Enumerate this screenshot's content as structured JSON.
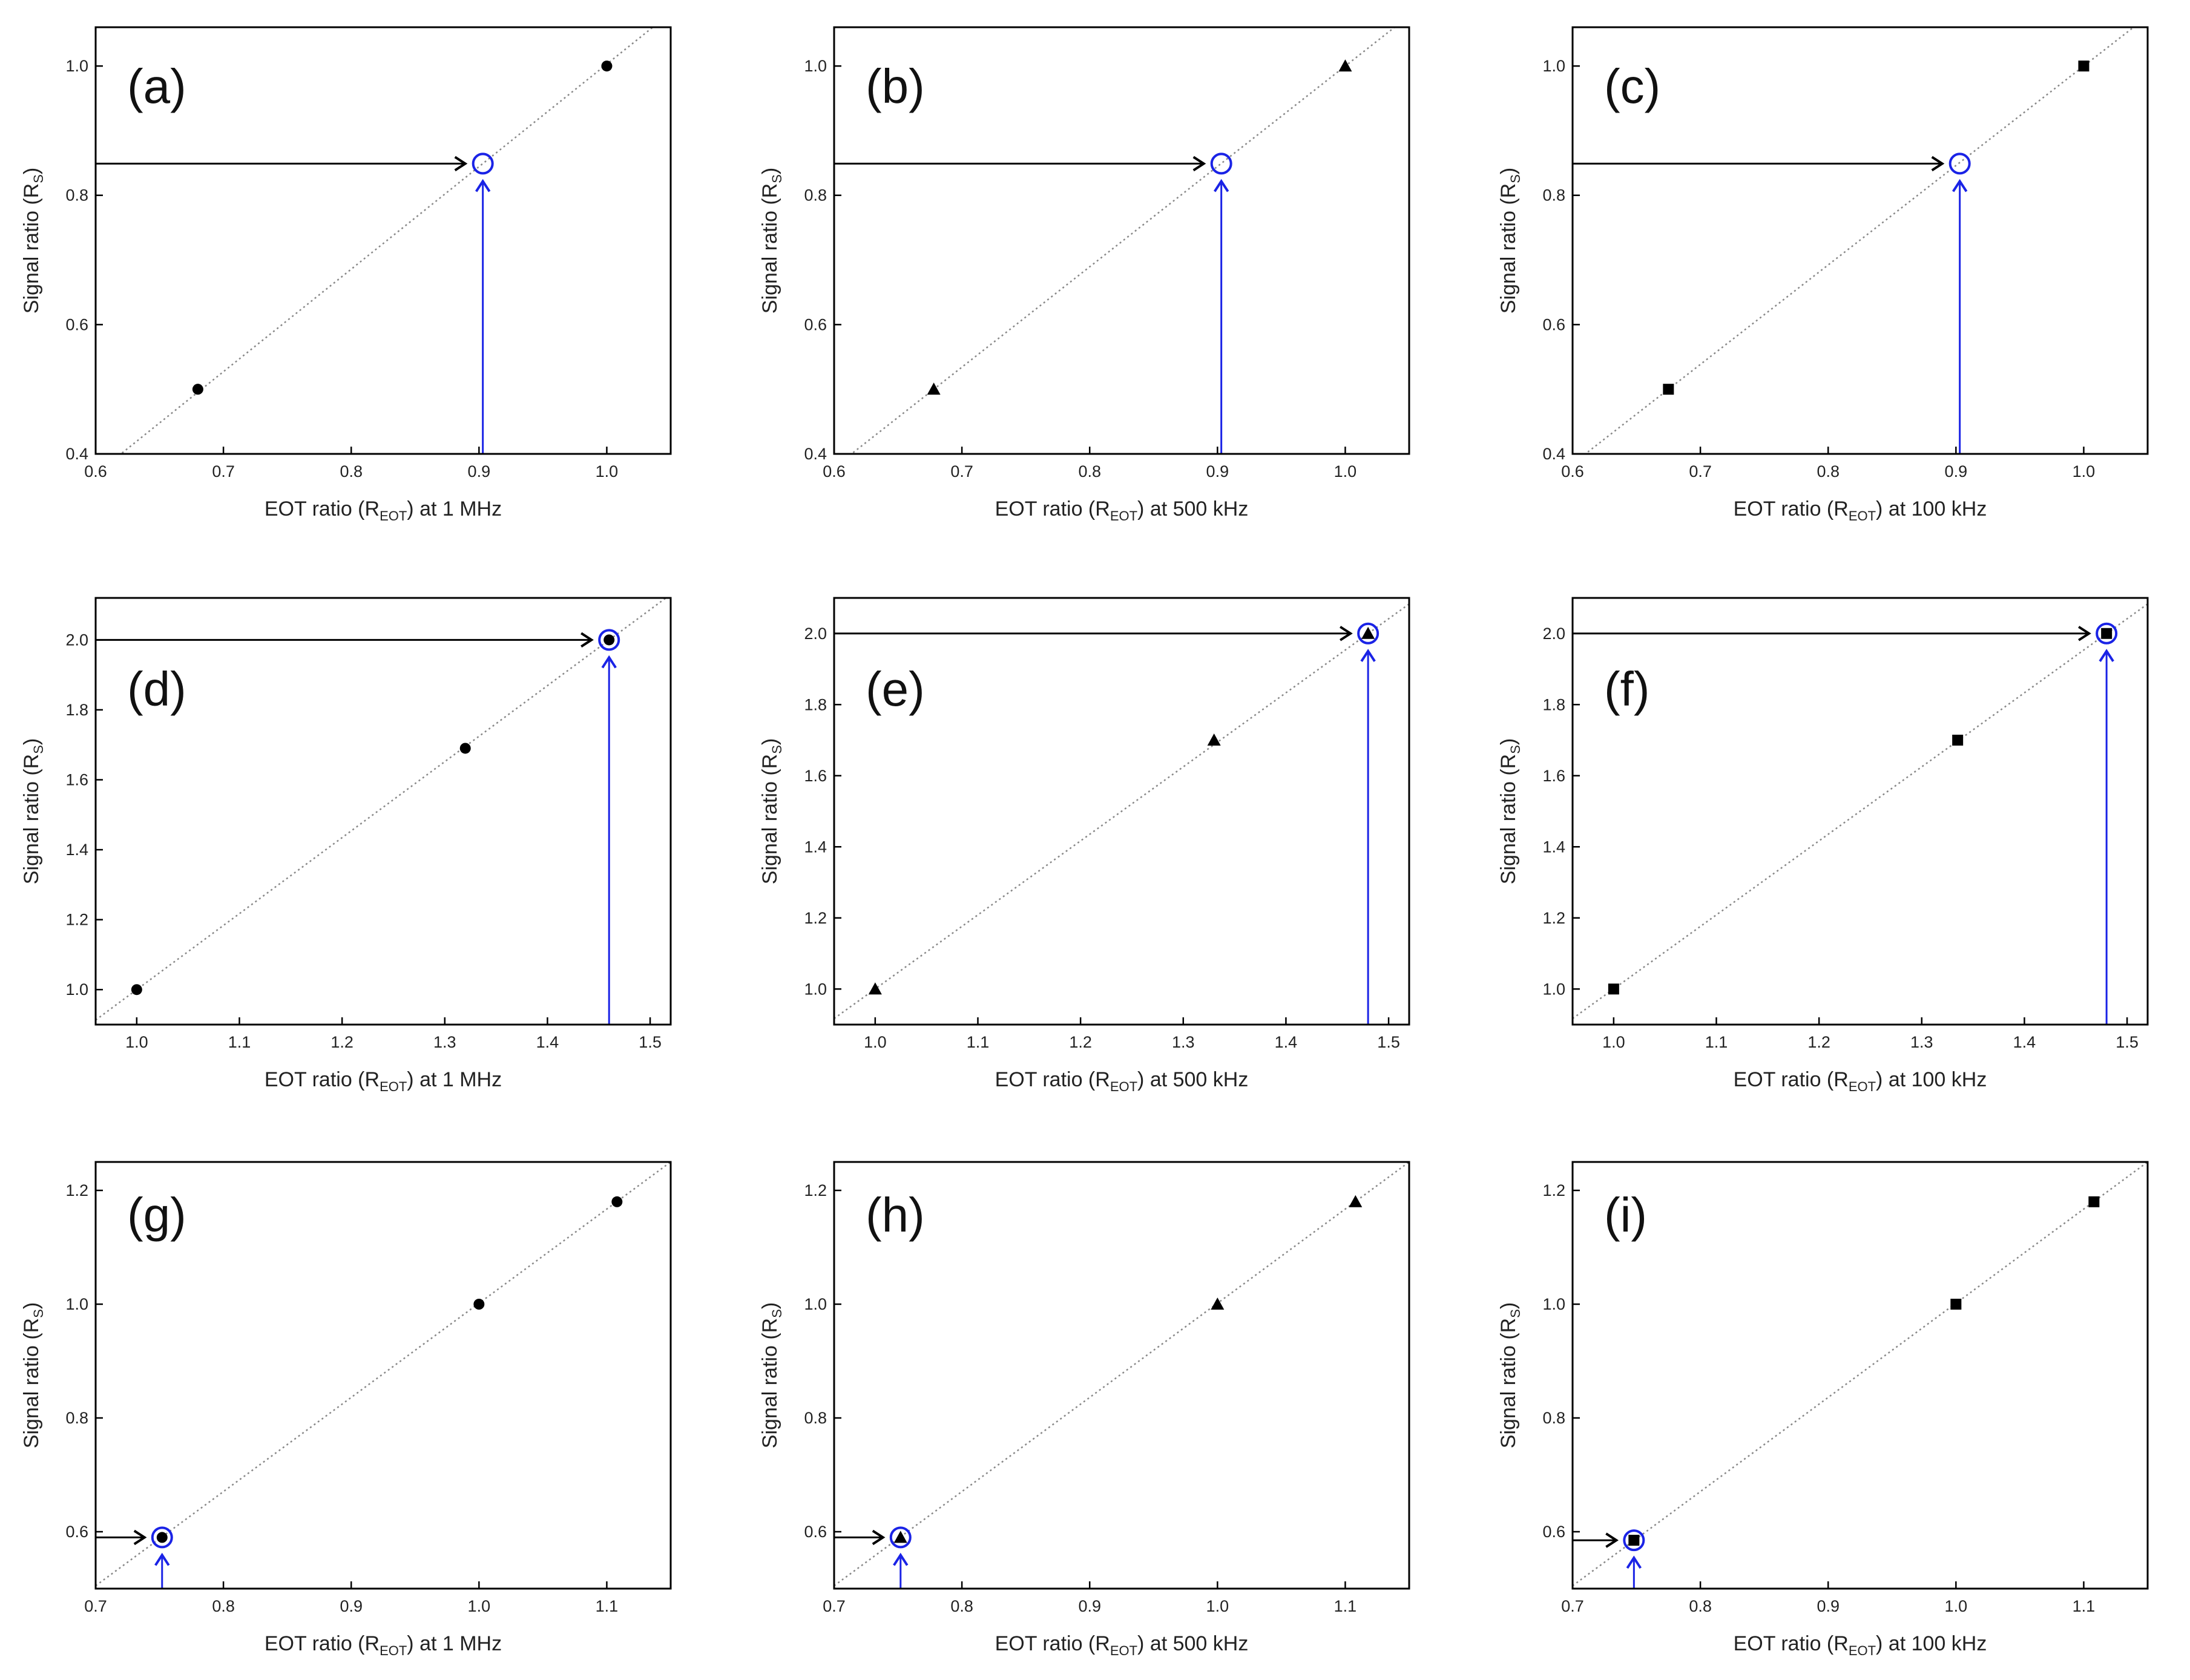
{
  "figure": {
    "axis_color": "#000000",
    "fit_line_color": "#888888",
    "highlight_color": "#1a23e6",
    "arrow_color": "#000000",
    "marker_color": "#000000"
  },
  "chart_data": [
    {
      "panel": "(a)",
      "type": "scatter",
      "marker": "circle",
      "xlabel_prefix": "EOT ratio (R",
      "xlabel_sub": "EOT",
      "xlabel_suffix": ") at 1 MHz",
      "ylabel_prefix": "Signal ratio (R",
      "ylabel_sub": "S",
      "ylabel_suffix": ")",
      "xlim": [
        0.6,
        1.05
      ],
      "ylim": [
        0.4,
        1.06
      ],
      "xticks": [
        "0.6",
        "0.7",
        "0.8",
        "0.9",
        "1.0"
      ],
      "yticks": [
        "0.4",
        "0.6",
        "0.8",
        "1.0"
      ],
      "points": [
        {
          "x": 0.68,
          "y": 0.5
        },
        {
          "x": 1.0,
          "y": 1.0
        }
      ],
      "fit_line": {
        "x": [
          0.6,
          1.05
        ],
        "y": [
          0.3686,
          1.0822
        ]
      },
      "highlight": {
        "x": 0.903,
        "y": 0.849
      }
    },
    {
      "panel": "(b)",
      "type": "scatter",
      "marker": "triangle",
      "xlabel_prefix": "EOT ratio (R",
      "xlabel_sub": "EOT",
      "xlabel_suffix": ") at 500 kHz",
      "ylabel_prefix": "Signal ratio (R",
      "ylabel_sub": "S",
      "ylabel_suffix": ")",
      "xlim": [
        0.6,
        1.05
      ],
      "ylim": [
        0.4,
        1.06
      ],
      "xticks": [
        "0.6",
        "0.7",
        "0.8",
        "0.9",
        "1.0"
      ],
      "yticks": [
        "0.4",
        "0.6",
        "0.8",
        "1.0"
      ],
      "points": [
        {
          "x": 0.678,
          "y": 0.5
        },
        {
          "x": 1.0,
          "y": 1.0
        }
      ],
      "fit_line": {
        "x": [
          0.6,
          1.05
        ],
        "y": [
          0.3789,
          1.0776
        ]
      },
      "highlight": {
        "x": 0.903,
        "y": 0.849
      }
    },
    {
      "panel": "(c)",
      "type": "scatter",
      "marker": "square",
      "xlabel_prefix": "EOT ratio (R",
      "xlabel_sub": "EOT",
      "xlabel_suffix": ") at 100 kHz",
      "ylabel_prefix": "Signal ratio (R",
      "ylabel_sub": "S",
      "ylabel_suffix": ")",
      "xlim": [
        0.6,
        1.05
      ],
      "ylim": [
        0.4,
        1.06
      ],
      "xticks": [
        "0.6",
        "0.7",
        "0.8",
        "0.9",
        "1.0"
      ],
      "yticks": [
        "0.4",
        "0.6",
        "0.8",
        "1.0"
      ],
      "points": [
        {
          "x": 0.675,
          "y": 0.5
        },
        {
          "x": 1.0,
          "y": 1.0
        }
      ],
      "fit_line": {
        "x": [
          0.6,
          1.05
        ],
        "y": [
          0.3846,
          1.0769
        ]
      },
      "highlight": {
        "x": 0.903,
        "y": 0.849
      }
    },
    {
      "panel": "(d)",
      "type": "scatter",
      "marker": "circle",
      "xlabel_prefix": "EOT ratio (R",
      "xlabel_sub": "EOT",
      "xlabel_suffix": ") at 1 MHz",
      "ylabel_prefix": "Signal ratio (R",
      "ylabel_sub": "S",
      "ylabel_suffix": ")",
      "xlim": [
        0.96,
        1.52
      ],
      "ylim": [
        0.9,
        2.12
      ],
      "xticks": [
        "1.0",
        "1.1",
        "1.2",
        "1.3",
        "1.4",
        "1.5"
      ],
      "yticks": [
        "1.0",
        "1.2",
        "1.4",
        "1.6",
        "1.8",
        "2.0"
      ],
      "points": [
        {
          "x": 1.0,
          "y": 1.0
        },
        {
          "x": 1.32,
          "y": 1.69
        },
        {
          "x": 1.46,
          "y": 2.0
        }
      ],
      "fit_line": {
        "x": [
          0.96,
          1.52
        ],
        "y": [
          0.913,
          2.13
        ]
      },
      "highlight": {
        "x": 1.46,
        "y": 2.0
      }
    },
    {
      "panel": "(e)",
      "type": "scatter",
      "marker": "triangle",
      "xlabel_prefix": "EOT ratio (R",
      "xlabel_sub": "EOT",
      "xlabel_suffix": ") at 500 kHz",
      "ylabel_prefix": "Signal ratio (R",
      "ylabel_sub": "S",
      "ylabel_suffix": ")",
      "xlim": [
        0.96,
        1.52
      ],
      "ylim": [
        0.9,
        2.1
      ],
      "xticks": [
        "1.0",
        "1.1",
        "1.2",
        "1.3",
        "1.4",
        "1.5"
      ],
      "yticks": [
        "1.0",
        "1.2",
        "1.4",
        "1.6",
        "1.8",
        "2.0"
      ],
      "points": [
        {
          "x": 1.0,
          "y": 1.0
        },
        {
          "x": 1.33,
          "y": 1.7
        },
        {
          "x": 1.48,
          "y": 2.0
        }
      ],
      "fit_line": {
        "x": [
          0.96,
          1.52
        ],
        "y": [
          0.917,
          2.083
        ]
      },
      "highlight": {
        "x": 1.48,
        "y": 2.0
      }
    },
    {
      "panel": "(f)",
      "type": "scatter",
      "marker": "square",
      "xlabel_prefix": "EOT ratio (R",
      "xlabel_sub": "EOT",
      "xlabel_suffix": ") at 100 kHz",
      "ylabel_prefix": "Signal ratio (R",
      "ylabel_sub": "S",
      "ylabel_suffix": ")",
      "xlim": [
        0.96,
        1.52
      ],
      "ylim": [
        0.9,
        2.1
      ],
      "xticks": [
        "1.0",
        "1.1",
        "1.2",
        "1.3",
        "1.4",
        "1.5"
      ],
      "yticks": [
        "1.0",
        "1.2",
        "1.4",
        "1.6",
        "1.8",
        "2.0"
      ],
      "points": [
        {
          "x": 1.0,
          "y": 1.0
        },
        {
          "x": 1.335,
          "y": 1.7
        },
        {
          "x": 1.48,
          "y": 2.0
        }
      ],
      "fit_line": {
        "x": [
          0.96,
          1.52
        ],
        "y": [
          0.917,
          2.083
        ]
      },
      "highlight": {
        "x": 1.48,
        "y": 2.0
      }
    },
    {
      "panel": "(g)",
      "type": "scatter",
      "marker": "circle",
      "xlabel_prefix": "EOT ratio (R",
      "xlabel_sub": "EOT",
      "xlabel_suffix": ") at 1 MHz",
      "ylabel_prefix": "Signal ratio (R",
      "ylabel_sub": "S",
      "ylabel_suffix": ")",
      "xlim": [
        0.7,
        1.15
      ],
      "ylim": [
        0.5,
        1.25
      ],
      "xticks": [
        "0.7",
        "0.8",
        "0.9",
        "1.0",
        "1.1"
      ],
      "yticks": [
        "0.6",
        "0.8",
        "1.0",
        "1.2"
      ],
      "points": [
        {
          "x": 0.752,
          "y": 0.59
        },
        {
          "x": 1.0,
          "y": 1.0
        },
        {
          "x": 1.108,
          "y": 1.18
        }
      ],
      "fit_line": {
        "x": [
          0.7,
          1.15
        ],
        "y": [
          0.505,
          1.25
        ]
      },
      "highlight": {
        "x": 0.752,
        "y": 0.59
      }
    },
    {
      "panel": "(h)",
      "type": "scatter",
      "marker": "triangle",
      "xlabel_prefix": "EOT ratio (R",
      "xlabel_sub": "EOT",
      "xlabel_suffix": ") at 500 kHz",
      "ylabel_prefix": "Signal ratio (R",
      "ylabel_sub": "S",
      "ylabel_suffix": ")",
      "xlim": [
        0.7,
        1.15
      ],
      "ylim": [
        0.5,
        1.25
      ],
      "xticks": [
        "0.7",
        "0.8",
        "0.9",
        "1.0",
        "1.1"
      ],
      "yticks": [
        "0.6",
        "0.8",
        "1.0",
        "1.2"
      ],
      "points": [
        {
          "x": 0.752,
          "y": 0.59
        },
        {
          "x": 1.0,
          "y": 1.0
        },
        {
          "x": 1.108,
          "y": 1.18
        }
      ],
      "fit_line": {
        "x": [
          0.7,
          1.15
        ],
        "y": [
          0.505,
          1.25
        ]
      },
      "highlight": {
        "x": 0.752,
        "y": 0.59
      }
    },
    {
      "panel": "(i)",
      "type": "scatter",
      "marker": "square",
      "xlabel_prefix": "EOT ratio (R",
      "xlabel_sub": "EOT",
      "xlabel_suffix": ") at 100 kHz",
      "ylabel_prefix": "Signal ratio (R",
      "ylabel_sub": "S",
      "ylabel_suffix": ")",
      "xlim": [
        0.7,
        1.15
      ],
      "ylim": [
        0.5,
        1.25
      ],
      "xticks": [
        "0.7",
        "0.8",
        "0.9",
        "1.0",
        "1.1"
      ],
      "yticks": [
        "0.6",
        "0.8",
        "1.0",
        "1.2"
      ],
      "points": [
        {
          "x": 0.748,
          "y": 0.585
        },
        {
          "x": 1.0,
          "y": 1.0
        },
        {
          "x": 1.108,
          "y": 1.18
        }
      ],
      "fit_line": {
        "x": [
          0.7,
          1.15
        ],
        "y": [
          0.505,
          1.25
        ]
      },
      "highlight": {
        "x": 0.748,
        "y": 0.585
      }
    }
  ]
}
